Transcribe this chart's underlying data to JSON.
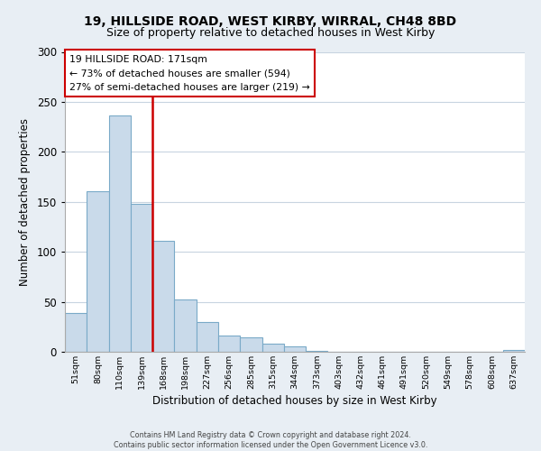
{
  "title": "19, HILLSIDE ROAD, WEST KIRBY, WIRRAL, CH48 8BD",
  "subtitle": "Size of property relative to detached houses in West Kirby",
  "xlabel": "Distribution of detached houses by size in West Kirby",
  "ylabel": "Number of detached properties",
  "bin_labels": [
    "51sqm",
    "80sqm",
    "110sqm",
    "139sqm",
    "168sqm",
    "198sqm",
    "227sqm",
    "256sqm",
    "285sqm",
    "315sqm",
    "344sqm",
    "373sqm",
    "403sqm",
    "432sqm",
    "461sqm",
    "491sqm",
    "520sqm",
    "549sqm",
    "578sqm",
    "608sqm",
    "637sqm"
  ],
  "bar_heights": [
    39,
    161,
    236,
    148,
    111,
    52,
    30,
    16,
    14,
    8,
    5,
    1,
    0,
    0,
    0,
    0,
    0,
    0,
    0,
    0,
    2
  ],
  "bar_face_color": "#c9daea",
  "bar_edge_color": "#7aaac8",
  "highlight_line_color": "#cc0000",
  "highlight_line_index": 4,
  "ylim": [
    0,
    300
  ],
  "yticks": [
    0,
    50,
    100,
    150,
    200,
    250,
    300
  ],
  "annotation_title": "19 HILLSIDE ROAD: 171sqm",
  "annotation_line1": "← 73% of detached houses are smaller (594)",
  "annotation_line2": "27% of semi-detached houses are larger (219) →",
  "annotation_box_color": "#ffffff",
  "annotation_box_edge_color": "#cc0000",
  "footer_line1": "Contains HM Land Registry data © Crown copyright and database right 2024.",
  "footer_line2": "Contains public sector information licensed under the Open Government Licence v3.0.",
  "figure_bg_color": "#e8eef4",
  "plot_bg_color": "#ffffff",
  "grid_color": "#c8d4e0"
}
